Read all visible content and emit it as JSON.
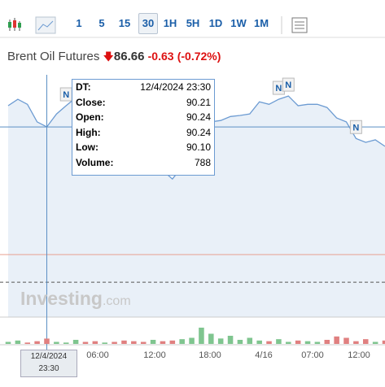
{
  "toolbar": {
    "intervals": [
      "1",
      "5",
      "15",
      "30",
      "1H",
      "5H",
      "1D",
      "1W",
      "1M"
    ],
    "selected": 3
  },
  "header": {
    "name": "Brent Oil Futures",
    "price": "86.66",
    "change": "-0.63",
    "change_pct": "(-0.72%)"
  },
  "tooltip": {
    "rows": [
      [
        "DT:",
        "12/4/2024 23:30"
      ],
      [
        "Close:",
        "90.21"
      ],
      [
        "Open:",
        "90.24"
      ],
      [
        "High:",
        "90.24"
      ],
      [
        "Low:",
        "90.10"
      ],
      [
        "Volume:",
        "788"
      ]
    ]
  },
  "crosshair": {
    "label": "12/4/2024 23:30",
    "index": 4,
    "value": 90.21
  },
  "watermark": {
    "brand": "Investing",
    "suffix": ".com"
  },
  "chart_data": {
    "type": "area",
    "color": "#6c9bd2",
    "fill": "#e9f0f8",
    "x_labels": [
      "06:00",
      "12:00",
      "18:00",
      "4/16",
      "07:00",
      "12:00"
    ],
    "values": [
      90.8,
      90.98,
      90.84,
      90.35,
      90.21,
      90.57,
      90.8,
      91.02,
      90.9,
      90.84,
      90.84,
      90.35,
      89.67,
      89.33,
      89.1,
      89.21,
      89.0,
      88.76,
      89.1,
      89.44,
      89.89,
      90.35,
      90.39,
      90.5,
      90.53,
      90.57,
      90.91,
      90.84,
      90.98,
      91.07,
      90.8,
      90.84,
      90.84,
      90.75,
      90.46,
      90.35,
      89.89,
      89.78,
      89.85,
      89.67
    ],
    "volume": [
      300,
      500,
      200,
      400,
      788,
      300,
      200,
      600,
      300,
      400,
      200,
      300,
      500,
      400,
      300,
      600,
      400,
      500,
      700,
      900,
      2400,
      1500,
      800,
      1200,
      600,
      900,
      500,
      400,
      700,
      300,
      500,
      400,
      300,
      600,
      1100,
      900,
      400,
      700,
      300,
      500
    ],
    "ylim": [
      84.92,
      91.66
    ],
    "vlim": [
      0,
      3000
    ],
    "price_line": 86.66,
    "dashed_line": 85.89,
    "news_markers": [
      {
        "label": "N",
        "index": 6
      },
      {
        "label": "N",
        "index": 28
      },
      {
        "label": "N",
        "index": 29
      },
      {
        "label": "N",
        "index": 36
      }
    ]
  }
}
